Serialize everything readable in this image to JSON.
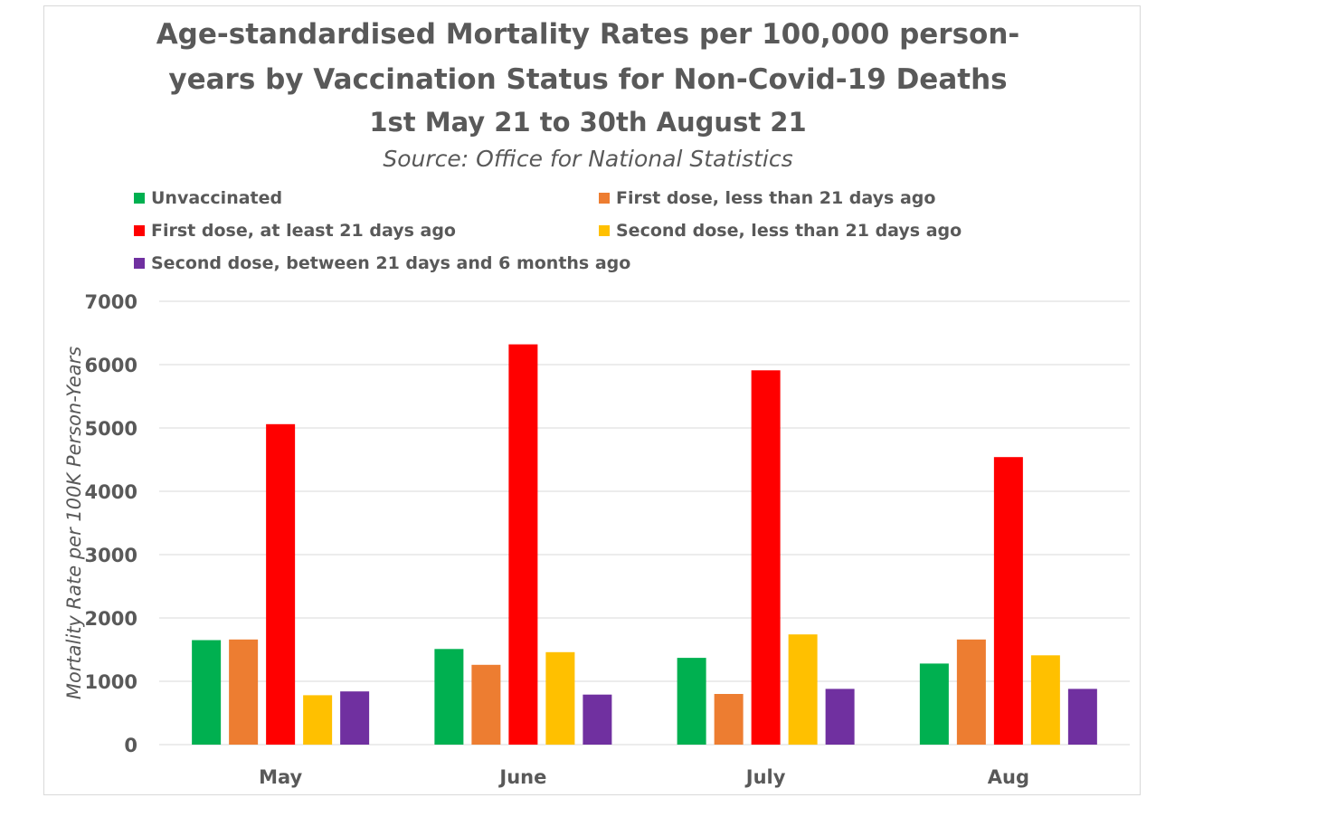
{
  "chart_data": {
    "type": "bar",
    "title": "Age-standardised Mortality Rates per 100,000 person-years by Vaccination Status for Non-Covid-19 Deaths",
    "title_line1": "Age-standardised Mortality Rates per 100,000 person-",
    "title_line2": "years by Vaccination Status for Non-Covid-19 Deaths",
    "subtitle": "1st May 21 to 30th August 21",
    "source": "Source: Office for National Statistics",
    "xlabel": "",
    "ylabel": "Mortality Rate per 100K Person-Years",
    "ylim": [
      0,
      7000
    ],
    "yticks": [
      0,
      1000,
      2000,
      3000,
      4000,
      5000,
      6000,
      7000
    ],
    "grid": true,
    "legend_position": "top",
    "categories": [
      "May",
      "June",
      "July",
      "Aug"
    ],
    "series": [
      {
        "name": "Unvaccinated",
        "color": "#00b050",
        "values": [
          1650,
          1510,
          1370,
          1280
        ]
      },
      {
        "name": "First dose, less than 21 days ago",
        "color": "#ed7d31",
        "values": [
          1660,
          1260,
          800,
          1660
        ]
      },
      {
        "name": "First dose, at least 21 days ago",
        "color": "#ff0000",
        "values": [
          5060,
          6320,
          5910,
          4540
        ]
      },
      {
        "name": "Second dose, less than 21 days ago",
        "color": "#ffc000",
        "values": [
          780,
          1460,
          1740,
          1410
        ]
      },
      {
        "name": "Second dose, between 21 days and 6 months ago",
        "color": "#7030a0",
        "values": [
          840,
          790,
          880,
          880
        ]
      }
    ]
  }
}
